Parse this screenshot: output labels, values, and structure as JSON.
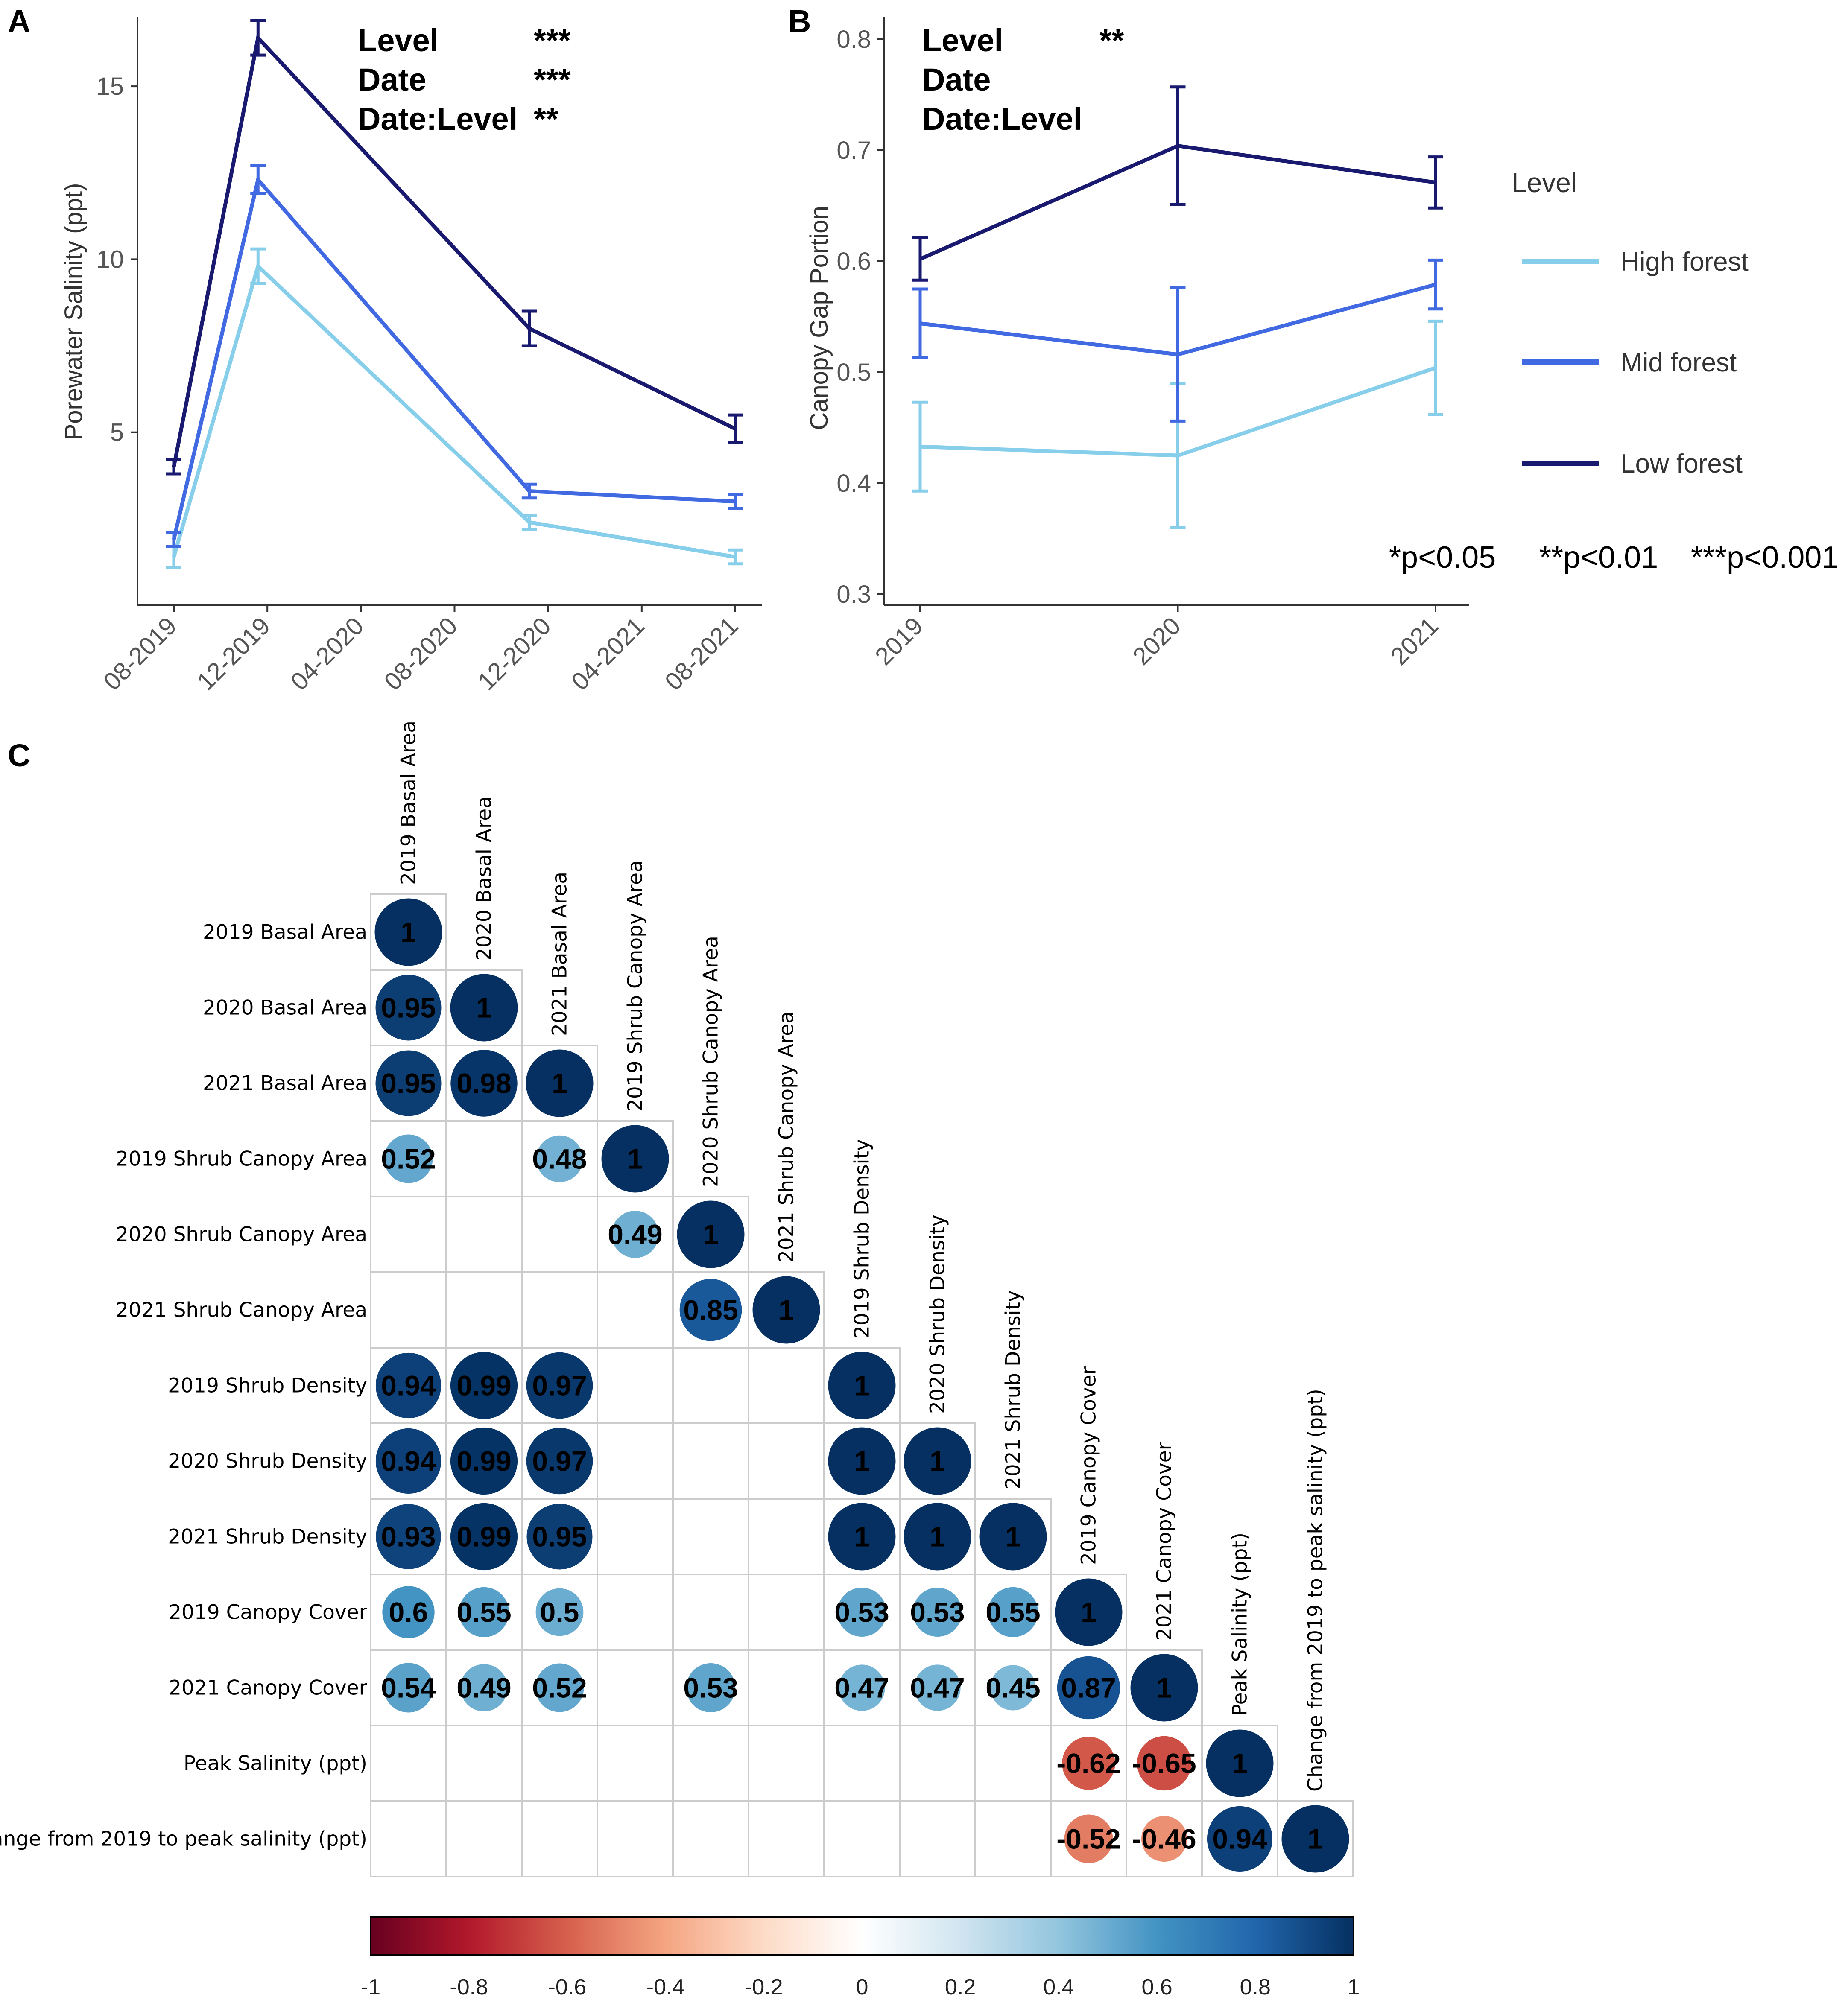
{
  "chart_data": [
    {
      "panel": "A",
      "type": "line",
      "xlabel": "",
      "ylabel": "Porewater Salinity (ppt)",
      "x_ticks": [
        "08-2019",
        "12-2019",
        "04-2020",
        "08-2020",
        "12-2020",
        "04-2021",
        "08-2021"
      ],
      "y_ticks": [
        "5",
        "10",
        "15"
      ],
      "xlim": [
        0,
        6
      ],
      "ylim": [
        0,
        17
      ],
      "x": [
        0.0,
        0.9,
        3.8,
        6.0
      ],
      "series": [
        {
          "name": "High forest",
          "color": "#87ceeb",
          "values": [
            1.4,
            9.8,
            2.4,
            1.4
          ],
          "err": [
            0.3,
            0.5,
            0.2,
            0.2
          ]
        },
        {
          "name": "Mid forest",
          "color": "#4169e1",
          "values": [
            1.9,
            12.3,
            3.3,
            3.0
          ],
          "err": [
            0.2,
            0.4,
            0.2,
            0.2
          ]
        },
        {
          "name": "Low forest",
          "color": "#191970",
          "values": [
            4.0,
            16.4,
            8.0,
            5.1
          ],
          "err": [
            0.2,
            0.5,
            0.5,
            0.4
          ]
        }
      ],
      "stats": [
        {
          "term": "Level",
          "sig": "***"
        },
        {
          "term": "Date",
          "sig": "***"
        },
        {
          "term": "Date:Level",
          "sig": "**"
        }
      ]
    },
    {
      "panel": "B",
      "type": "line",
      "xlabel": "",
      "ylabel": "Canopy Gap Portion",
      "x_ticks": [
        "2019",
        "2020",
        "2021"
      ],
      "y_ticks": [
        "0.3",
        "0.4",
        "0.5",
        "0.6",
        "0.7",
        "0.8"
      ],
      "ylim": [
        0.29,
        0.82
      ],
      "series": [
        {
          "name": "High forest",
          "color": "#87ceeb",
          "values": [
            0.433,
            0.425,
            0.504
          ],
          "err": [
            0.04,
            0.065,
            0.042
          ]
        },
        {
          "name": "Mid forest",
          "color": "#4169e1",
          "values": [
            0.544,
            0.516,
            0.579
          ],
          "err": [
            0.031,
            0.06,
            0.022
          ]
        },
        {
          "name": "Low forest",
          "color": "#191970",
          "values": [
            0.602,
            0.704,
            0.671
          ],
          "err": [
            0.019,
            0.053,
            0.023
          ]
        }
      ],
      "stats": [
        {
          "term": "Level",
          "sig": "**"
        },
        {
          "term": "Date",
          "sig": ""
        },
        {
          "term": "Date:Level",
          "sig": ""
        }
      ],
      "legend_title": "Level",
      "legend_position": "right",
      "pnote": [
        "*p<0.05",
        "**p<0.01",
        "***p<0.001"
      ]
    },
    {
      "panel": "C",
      "type": "heatmap",
      "subtype": "correlation matrix (lower triangle, circles)",
      "variables": [
        "2019 Basal Area",
        "2020 Basal Area",
        "2021 Basal Area",
        "2019 Shrub Canopy Area",
        "2020 Shrub Canopy Area",
        "2021 Shrub Canopy Area",
        "2019 Shrub Density",
        "2020 Shrub Density",
        "2021 Shrub Density",
        "2019 Canopy Cover",
        "2021 Canopy Cover",
        "Peak Salinity (ppt)",
        "Change from 2019 to peak salinity (ppt)"
      ],
      "matrix": [
        [
          1
        ],
        [
          0.95,
          1
        ],
        [
          0.95,
          0.98,
          1
        ],
        [
          0.52,
          null,
          0.48,
          1
        ],
        [
          null,
          null,
          null,
          0.49,
          1
        ],
        [
          null,
          null,
          null,
          null,
          0.85,
          1
        ],
        [
          0.94,
          0.99,
          0.97,
          null,
          null,
          null,
          1
        ],
        [
          0.94,
          0.99,
          0.97,
          null,
          null,
          null,
          1,
          1
        ],
        [
          0.93,
          0.99,
          0.95,
          null,
          null,
          null,
          1,
          1,
          1
        ],
        [
          0.6,
          0.55,
          0.5,
          null,
          null,
          null,
          0.53,
          0.53,
          0.55,
          1
        ],
        [
          0.54,
          0.49,
          0.52,
          null,
          0.53,
          null,
          0.47,
          0.47,
          0.45,
          0.87,
          1
        ],
        [
          null,
          null,
          null,
          null,
          null,
          null,
          null,
          null,
          null,
          -0.62,
          -0.65,
          1
        ],
        [
          null,
          null,
          null,
          null,
          null,
          null,
          null,
          null,
          null,
          -0.52,
          -0.46,
          0.94,
          1
        ]
      ],
      "colorbar_ticks": [
        "-1",
        "-0.8",
        "-0.6",
        "-0.4",
        "-0.2",
        "0",
        "0.2",
        "0.4",
        "0.6",
        "0.8",
        "1"
      ],
      "colorbar_range": [
        -1,
        1
      ]
    }
  ]
}
